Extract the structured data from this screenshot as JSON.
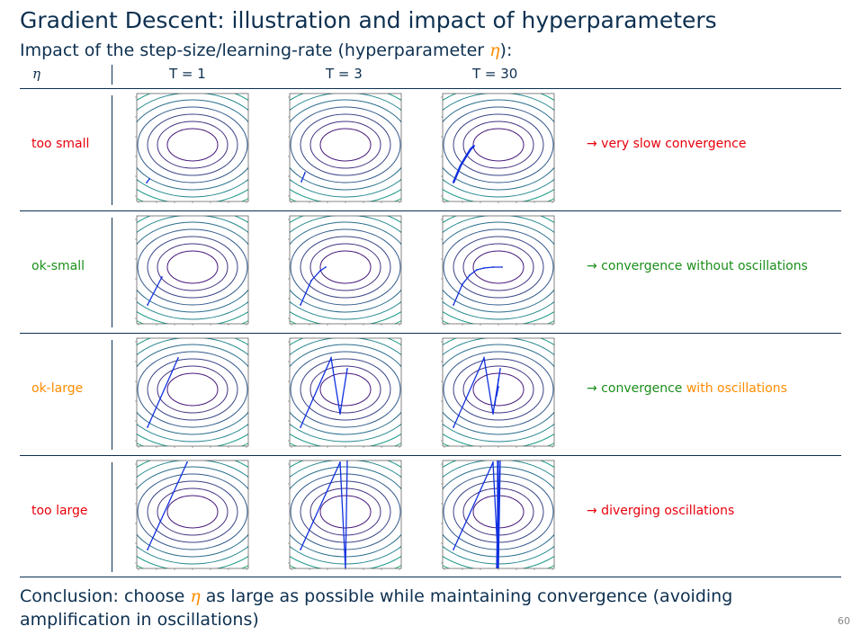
{
  "slide": {
    "title": "Gradient Descent: illustration and impact of hyperparameters",
    "subtitle_pre": "Impact of the step-size/learning-rate (hyperparameter ",
    "subtitle_var": "η",
    "subtitle_post": "):",
    "page_number": "60"
  },
  "header": {
    "eta": "η",
    "columns": [
      "T = 1",
      "T = 3",
      "T = 30"
    ]
  },
  "rows": [
    {
      "label": "too small",
      "label_color": "#e8000b",
      "desc": "→ very slow convergence",
      "desc_parts": [
        {
          "text": "→ very slow convergence",
          "color": "#e8000b"
        }
      ]
    },
    {
      "label": "ok-small",
      "label_color": "#1a8f1a",
      "desc_parts": [
        {
          "text": "→ convergence without oscillations",
          "color": "#1a8f1a"
        }
      ]
    },
    {
      "label": "ok-large",
      "label_color": "#ff8c00",
      "desc_parts": [
        {
          "text": "→ convergence ",
          "color": "#1a8f1a"
        },
        {
          "text": "with oscillations",
          "color": "#ff8c00"
        }
      ]
    },
    {
      "label": "too large",
      "label_color": "#e8000b",
      "desc_parts": [
        {
          "text": "→ diverging oscillations",
          "color": "#e8000b"
        }
      ]
    }
  ],
  "conclusion": {
    "pre": "Conclusion: choose ",
    "var": "η",
    "post": " as large as possible while maintaining convergence (avoiding amplification in oscillations)"
  },
  "colors": {
    "text": "#0d3050",
    "trajectory": "#1030e0",
    "red": "#e8000b",
    "green": "#1a8f1a",
    "orange": "#ff8c00"
  }
}
